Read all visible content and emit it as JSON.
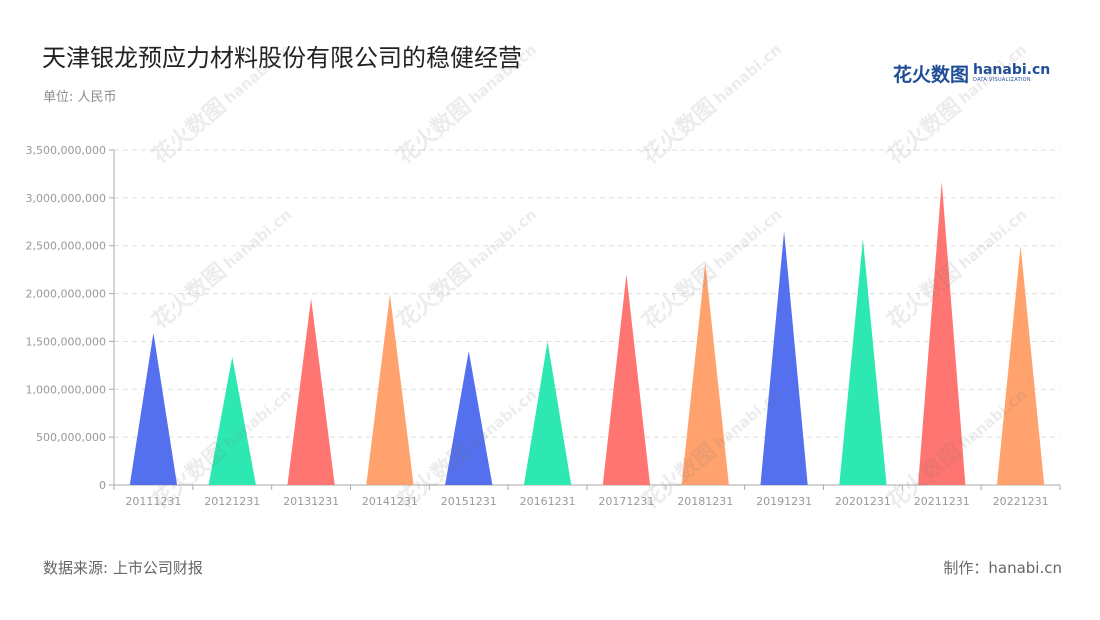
{
  "header": {
    "title": "天津银龙预应力材料股份有限公司的稳健经营",
    "unit": "单位: 人民币"
  },
  "logo": {
    "cn": "花火数图",
    "en": "hanabi.cn",
    "sub": "DATA VISUALIZATION"
  },
  "footer": {
    "source": "数据来源: 上市公司财报",
    "credit": "制作：hanabi.cn"
  },
  "colors": {
    "palette": [
      "#5470ee",
      "#2ee8b2",
      "#ff7571",
      "#ffa26e"
    ],
    "grid": "#dddddd",
    "axis": "#aaaaaa",
    "tick_text": "#999999"
  },
  "chart_data": {
    "type": "bar",
    "shape": "pictorial-triangle",
    "categories": [
      "20111231",
      "20121231",
      "20131231",
      "20141231",
      "20151231",
      "20161231",
      "20171231",
      "20181231",
      "20191231",
      "20201231",
      "20211231",
      "20221231"
    ],
    "values": [
      1590000000,
      1340000000,
      1950000000,
      1990000000,
      1400000000,
      1500000000,
      2200000000,
      2320000000,
      2650000000,
      2570000000,
      3170000000,
      2500000000
    ],
    "ylim": [
      0,
      3500000000
    ],
    "yticks": [
      0,
      500000000,
      1000000000,
      1500000000,
      2000000000,
      2500000000,
      3000000000,
      3500000000
    ],
    "ytick_labels": [
      "0",
      "500,000,000",
      "1,000,000,000",
      "1,500,000,000",
      "2,000,000,000",
      "2,500,000,000",
      "3,000,000,000",
      "3,500,000,000"
    ],
    "title": "天津银龙预应力材料股份有限公司的稳健经营",
    "xlabel": "",
    "ylabel": "",
    "grid": true,
    "legend": "none"
  }
}
